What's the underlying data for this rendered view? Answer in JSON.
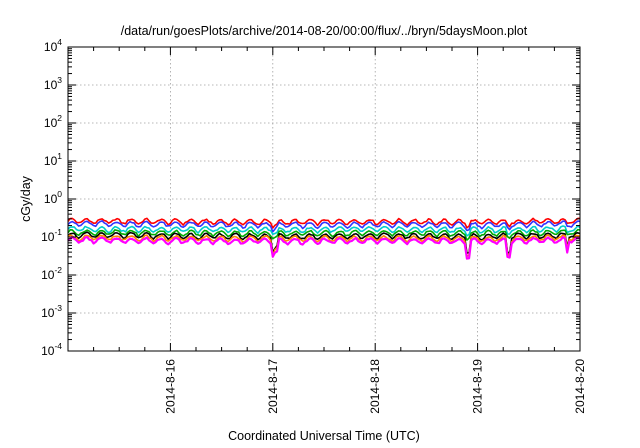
{
  "chart_data": {
    "type": "line",
    "title": "/data/run/goesPlots/archive/2014-08-20/00:00/flux/../bryn/5daysMoon.plot",
    "xlabel": "Coordinated Universal Time (UTC)",
    "ylabel": "cGy/day",
    "yscale": "log",
    "ylim": [
      0.0001,
      10000
    ],
    "xlim": [
      "2014-08-15 00:00",
      "2014-08-20 00:00"
    ],
    "x_ticks": [
      "2014-8-16",
      "2014-8-17",
      "2014-8-18",
      "2014-8-19",
      "2014-8-20"
    ],
    "y_ticks": [
      {
        "base": "10",
        "exp": "-4"
      },
      {
        "base": "10",
        "exp": "-3"
      },
      {
        "base": "10",
        "exp": "-2"
      },
      {
        "base": "10",
        "exp": "-1"
      },
      {
        "base": "10",
        "exp": "0"
      },
      {
        "base": "10",
        "exp": "1"
      },
      {
        "base": "10",
        "exp": "2"
      },
      {
        "base": "10",
        "exp": "3"
      },
      {
        "base": "10",
        "exp": "4"
      }
    ],
    "grid": true,
    "series": [
      {
        "color": "#ff0000",
        "x": [
          "2014-08-15",
          "2014-08-16",
          "2014-08-17",
          "2014-08-18",
          "2014-08-19",
          "2014-08-20"
        ],
        "values": [
          0.26,
          0.25,
          0.24,
          0.25,
          0.24,
          0.26
        ]
      },
      {
        "color": "#3333ff",
        "x": [
          "2014-08-15",
          "2014-08-16",
          "2014-08-17",
          "2014-08-18",
          "2014-08-19",
          "2014-08-20"
        ],
        "values": [
          0.22,
          0.21,
          0.2,
          0.21,
          0.2,
          0.22
        ]
      },
      {
        "color": "#00cccc",
        "x": [
          "2014-08-15",
          "2014-08-16",
          "2014-08-17",
          "2014-08-18",
          "2014-08-19",
          "2014-08-20"
        ],
        "values": [
          0.16,
          0.155,
          0.15,
          0.155,
          0.15,
          0.16
        ]
      },
      {
        "color": "#00aa00",
        "x": [
          "2014-08-15",
          "2014-08-16",
          "2014-08-17",
          "2014-08-18",
          "2014-08-19",
          "2014-08-20"
        ],
        "values": [
          0.13,
          0.125,
          0.12,
          0.125,
          0.12,
          0.13
        ]
      },
      {
        "color": "#000000",
        "x": [
          "2014-08-15",
          "2014-08-16",
          "2014-08-17",
          "2014-08-18",
          "2014-08-19",
          "2014-08-20"
        ],
        "values": [
          0.11,
          0.105,
          0.1,
          0.105,
          0.1,
          0.11
        ]
      },
      {
        "color": "#ff8800",
        "x": [
          "2014-08-15",
          "2014-08-16",
          "2014-08-17",
          "2014-08-18",
          "2014-08-19",
          "2014-08-20"
        ],
        "values": [
          0.095,
          0.09,
          0.088,
          0.09,
          0.088,
          0.095
        ]
      },
      {
        "color": "#ff00ff",
        "x": [
          "2014-08-15",
          "2014-08-16",
          "2014-08-17",
          "2014-08-18",
          "2014-08-19",
          "2014-08-20"
        ],
        "values": [
          0.082,
          0.078,
          0.075,
          0.078,
          0.075,
          0.082
        ]
      }
    ]
  }
}
